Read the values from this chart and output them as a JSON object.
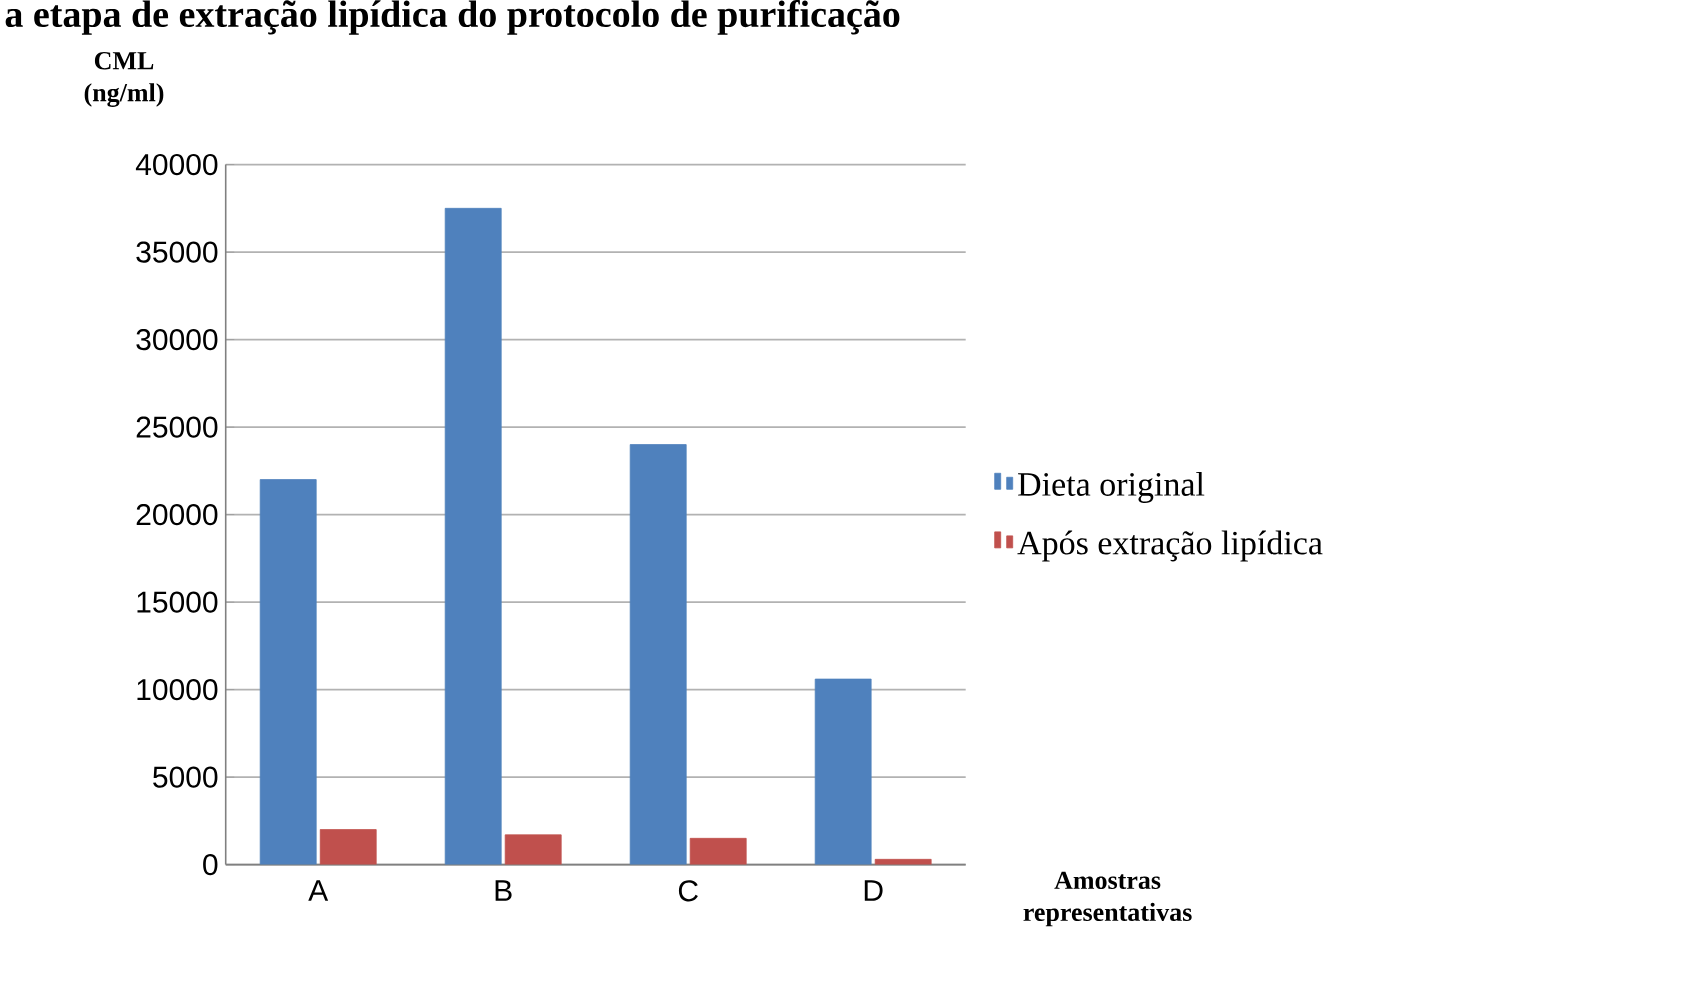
{
  "chart_data": {
    "type": "bar",
    "title": "a etapa de extração lipídica do protocolo de purificação",
    "ylabel": "CML (ng/ml)",
    "xlabel": "Amostras representativas",
    "categories": [
      "A",
      "B",
      "C",
      "D"
    ],
    "series": [
      {
        "name": "Dieta original",
        "color": "#4f81bd",
        "values": [
          22000,
          37500,
          24000,
          10600
        ]
      },
      {
        "name": "Após extração lipídica",
        "color": "#c0504d",
        "values": [
          2000,
          1700,
          1500,
          300
        ]
      }
    ],
    "ylim": [
      0,
      40000
    ],
    "yticks": [
      0,
      5000,
      10000,
      15000,
      20000,
      25000,
      30000,
      35000,
      40000
    ],
    "grid": "y",
    "legend": "right"
  }
}
